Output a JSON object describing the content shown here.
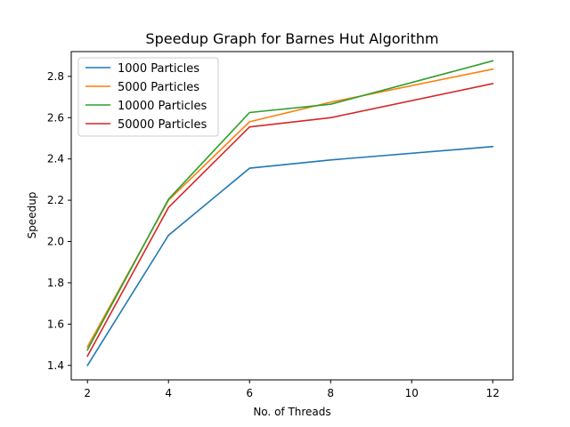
{
  "chart_data": {
    "type": "line",
    "title": "Speedup Graph for Barnes Hut Algorithm",
    "xlabel": "No. of Threads",
    "ylabel": "Speedup",
    "xlim": [
      1.6,
      12.5
    ],
    "ylim": [
      1.33,
      2.92
    ],
    "xticks": [
      2,
      4,
      6,
      8,
      10,
      12
    ],
    "yticks": [
      1.4,
      1.6,
      1.8,
      2.0,
      2.2,
      2.4,
      2.6,
      2.8
    ],
    "grid": false,
    "legend_position": "upper-left",
    "series": [
      {
        "name": "1000 Particles",
        "color": "#1f77b4",
        "x": [
          2,
          4,
          6,
          8,
          12
        ],
        "y": [
          1.4,
          2.03,
          2.355,
          2.395,
          2.46
        ]
      },
      {
        "name": "5000 Particles",
        "color": "#ff7f0e",
        "x": [
          2,
          4,
          6,
          8,
          12
        ],
        "y": [
          1.49,
          2.2,
          2.58,
          2.675,
          2.835
        ]
      },
      {
        "name": "10000 Particles",
        "color": "#2ca02c",
        "x": [
          2,
          4,
          6,
          8,
          12
        ],
        "y": [
          1.475,
          2.205,
          2.625,
          2.665,
          2.875
        ]
      },
      {
        "name": "50000 Particles",
        "color": "#d62728",
        "x": [
          2,
          4,
          6,
          8,
          12
        ],
        "y": [
          1.445,
          2.165,
          2.555,
          2.6,
          2.765
        ]
      }
    ]
  }
}
